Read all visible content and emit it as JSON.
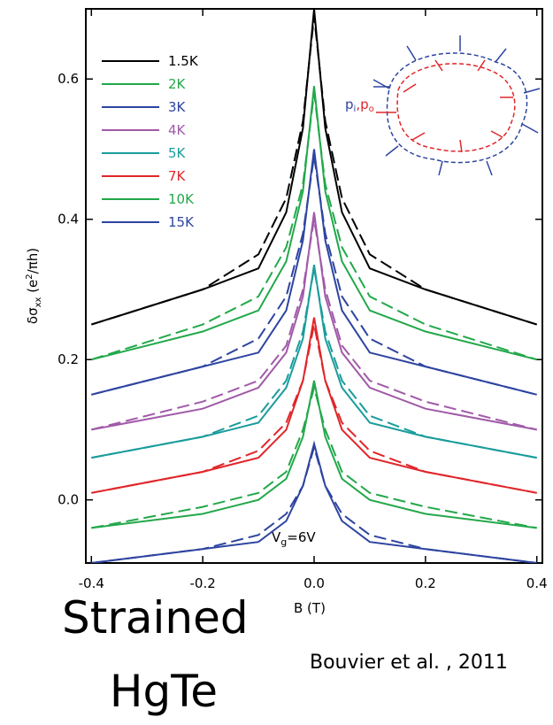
{
  "chart_data": {
    "type": "line",
    "y_label": {
      "main": "δσ",
      "sub": "xx",
      "mid": " (e",
      "sup": "2",
      "end": "/πh)"
    },
    "x_label": "B (T)",
    "annotation": {
      "main": "V",
      "sub": "g",
      "end": "=6V"
    },
    "inset_labels": {
      "p1": "p",
      "s1": "i",
      "p2": ",p",
      "s2": "o"
    },
    "title_lines": [
      "Strained",
      "HgTe"
    ],
    "credit": "Bouvier et al. , 2011",
    "xlim": [
      -0.41,
      0.41
    ],
    "ylim": [
      -0.09,
      0.7
    ],
    "xticks": [
      -0.4,
      -0.2,
      {
        "value": 0,
        "label": "0.0"
      },
      0.2,
      0.4
    ],
    "yticks": [
      {
        "value": 0,
        "label": "0.0"
      },
      0.2,
      0.4,
      0.6
    ],
    "x": [
      -0.4,
      -0.2,
      -0.1,
      -0.05,
      -0.02,
      0,
      0.02,
      0.05,
      0.1,
      0.2,
      0.4
    ],
    "series": [
      {
        "name": "1.5K",
        "color": "#000000",
        "values": [
          0.25,
          0.3,
          0.33,
          0.41,
          0.53,
          0.7,
          0.53,
          0.41,
          0.33,
          0.3,
          0.25
        ],
        "fit": [
          0.25,
          0.3,
          0.35,
          0.43,
          0.54,
          0.69,
          0.54,
          0.43,
          0.35,
          0.3,
          0.25
        ]
      },
      {
        "name": "2K",
        "color": "#22a84a",
        "values": [
          0.2,
          0.24,
          0.27,
          0.34,
          0.44,
          0.59,
          0.44,
          0.34,
          0.27,
          0.24,
          0.2
        ],
        "fit": [
          0.2,
          0.25,
          0.29,
          0.36,
          0.45,
          0.58,
          0.45,
          0.36,
          0.29,
          0.25,
          0.2
        ]
      },
      {
        "name": "3K",
        "color": "#2d44a0",
        "values": [
          0.15,
          0.19,
          0.21,
          0.27,
          0.37,
          0.5,
          0.37,
          0.27,
          0.21,
          0.19,
          0.15
        ],
        "fit": [
          0.15,
          0.19,
          0.23,
          0.29,
          0.38,
          0.49,
          0.38,
          0.29,
          0.23,
          0.19,
          0.15
        ]
      },
      {
        "name": "4K",
        "color": "#a05aa8",
        "values": [
          0.1,
          0.13,
          0.16,
          0.21,
          0.29,
          0.41,
          0.29,
          0.21,
          0.16,
          0.13,
          0.1
        ],
        "fit": [
          0.1,
          0.14,
          0.17,
          0.22,
          0.3,
          0.4,
          0.3,
          0.22,
          0.17,
          0.14,
          0.1
        ]
      },
      {
        "name": "5K",
        "color": "#1a9c9c",
        "values": [
          0.06,
          0.09,
          0.11,
          0.16,
          0.23,
          0.335,
          0.23,
          0.16,
          0.11,
          0.09,
          0.06
        ],
        "fit": [
          0.06,
          0.09,
          0.12,
          0.17,
          0.24,
          0.33,
          0.24,
          0.17,
          0.12,
          0.09,
          0.06
        ]
      },
      {
        "name": "7K",
        "color": "#e0262a",
        "values": [
          0.01,
          0.04,
          0.06,
          0.1,
          0.17,
          0.26,
          0.17,
          0.1,
          0.06,
          0.04,
          0.01
        ],
        "fit": [
          0.01,
          0.04,
          0.07,
          0.11,
          0.17,
          0.25,
          0.17,
          0.11,
          0.07,
          0.04,
          0.01
        ]
      },
      {
        "name": "10K",
        "color": "#22a84a",
        "values": [
          -0.04,
          -0.02,
          0.0,
          0.03,
          0.09,
          0.17,
          0.09,
          0.03,
          0.0,
          -0.02,
          -0.04
        ],
        "fit": [
          -0.04,
          -0.01,
          0.01,
          0.04,
          0.1,
          0.16,
          0.1,
          0.04,
          0.01,
          -0.01,
          -0.04
        ]
      },
      {
        "name": "15K",
        "color": "#2d44a0",
        "values": [
          -0.09,
          -0.07,
          -0.06,
          -0.03,
          0.02,
          0.08,
          0.02,
          -0.03,
          -0.06,
          -0.07,
          -0.09
        ],
        "fit": [
          -0.09,
          -0.07,
          -0.05,
          -0.02,
          0.02,
          0.075,
          0.02,
          -0.02,
          -0.05,
          -0.07,
          -0.09
        ]
      }
    ]
  }
}
